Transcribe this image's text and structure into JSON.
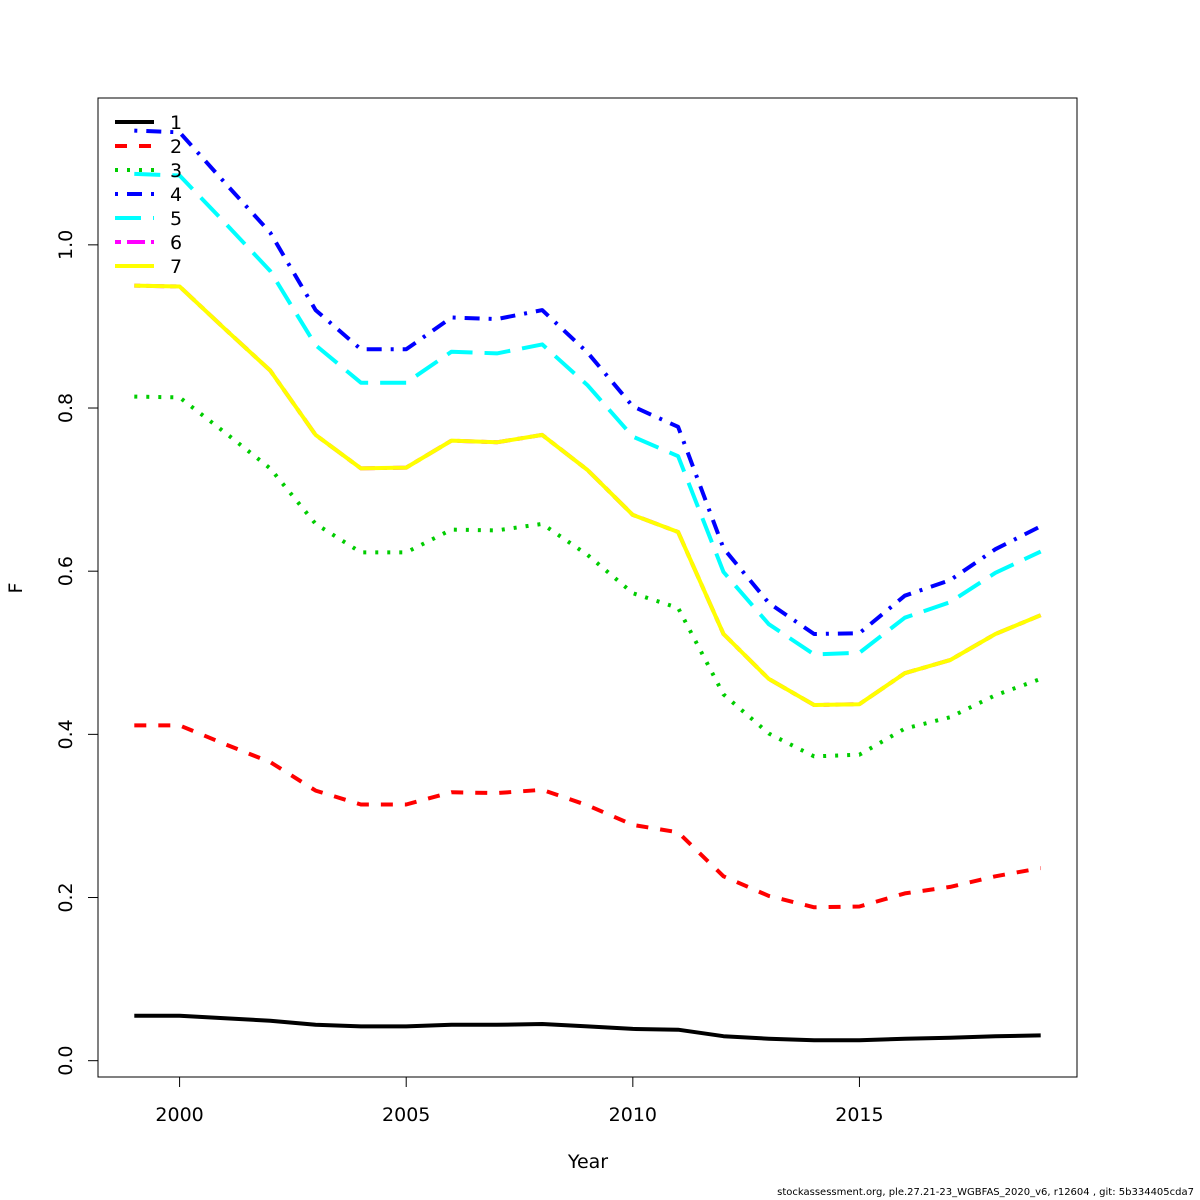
{
  "chart_data": {
    "type": "line",
    "xlabel": "Year",
    "ylabel": "F",
    "xlim": [
      1998.2,
      2019.8
    ],
    "ylim": [
      -0.02,
      1.18
    ],
    "xticks": [
      2000,
      2005,
      2010,
      2015
    ],
    "xtick_labels": [
      "2000",
      "2005",
      "2010",
      "2015"
    ],
    "yticks": [
      0.0,
      0.2,
      0.4,
      0.6,
      0.8,
      1.0
    ],
    "ytick_labels": [
      "0.0",
      "0.2",
      "0.4",
      "0.6",
      "0.8",
      "1.0"
    ],
    "grid": false,
    "legend_position": "top-left",
    "x": [
      1999,
      2000,
      2001,
      2002,
      2003,
      2004,
      2005,
      2006,
      2007,
      2008,
      2009,
      2010,
      2011,
      2012,
      2013,
      2014,
      2015,
      2016,
      2017,
      2018,
      2019
    ],
    "series": [
      {
        "name": "1",
        "color": "#000000",
        "dash": "solid",
        "values": [
          0.055,
          0.055,
          0.052,
          0.049,
          0.044,
          0.042,
          0.042,
          0.044,
          0.044,
          0.045,
          0.042,
          0.039,
          0.038,
          0.03,
          0.027,
          0.025,
          0.025,
          0.027,
          0.028,
          0.03,
          0.031
        ]
      },
      {
        "name": "2",
        "color": "#ff0000",
        "dash": "dashed",
        "values": [
          0.411,
          0.411,
          0.388,
          0.366,
          0.331,
          0.314,
          0.314,
          0.329,
          0.328,
          0.332,
          0.313,
          0.289,
          0.28,
          0.226,
          0.202,
          0.188,
          0.189,
          0.205,
          0.213,
          0.226,
          0.236
        ]
      },
      {
        "name": "3",
        "color": "#00cd00",
        "dash": "dotted",
        "values": [
          0.814,
          0.813,
          0.77,
          0.726,
          0.658,
          0.623,
          0.623,
          0.651,
          0.65,
          0.658,
          0.62,
          0.573,
          0.555,
          0.449,
          0.401,
          0.373,
          0.375,
          0.407,
          0.421,
          0.448,
          0.468
        ]
      },
      {
        "name": "4",
        "color": "#0000ff",
        "dash": "dotdash",
        "values": [
          1.14,
          1.138,
          1.076,
          1.015,
          0.92,
          0.872,
          0.872,
          0.911,
          0.909,
          0.92,
          0.868,
          0.802,
          0.777,
          0.628,
          0.561,
          0.523,
          0.524,
          0.57,
          0.589,
          0.627,
          0.655
        ]
      },
      {
        "name": "5",
        "color": "#00ffff",
        "dash": "longdash",
        "values": [
          1.087,
          1.085,
          1.027,
          0.968,
          0.877,
          0.831,
          0.831,
          0.869,
          0.867,
          0.878,
          0.828,
          0.765,
          0.741,
          0.599,
          0.535,
          0.498,
          0.5,
          0.543,
          0.562,
          0.598,
          0.624
        ]
      },
      {
        "name": "6",
        "color": "#ff00ff",
        "dash": "twodash",
        "values": [
          0.95,
          0.949,
          0.897,
          0.846,
          0.767,
          0.726,
          0.727,
          0.76,
          0.758,
          0.767,
          0.724,
          0.669,
          0.648,
          0.523,
          0.468,
          0.436,
          0.437,
          0.475,
          0.491,
          0.523,
          0.546
        ]
      },
      {
        "name": "7",
        "color": "#ffff00",
        "dash": "solid",
        "values": [
          0.95,
          0.949,
          0.897,
          0.846,
          0.767,
          0.726,
          0.727,
          0.76,
          0.758,
          0.767,
          0.724,
          0.669,
          0.648,
          0.523,
          0.468,
          0.436,
          0.437,
          0.475,
          0.491,
          0.523,
          0.546
        ]
      }
    ]
  },
  "footer": "stockassessment.org, ple.27.21-23_WGBFAS_2020_v6, r12604 , git: 5b334405cda7"
}
